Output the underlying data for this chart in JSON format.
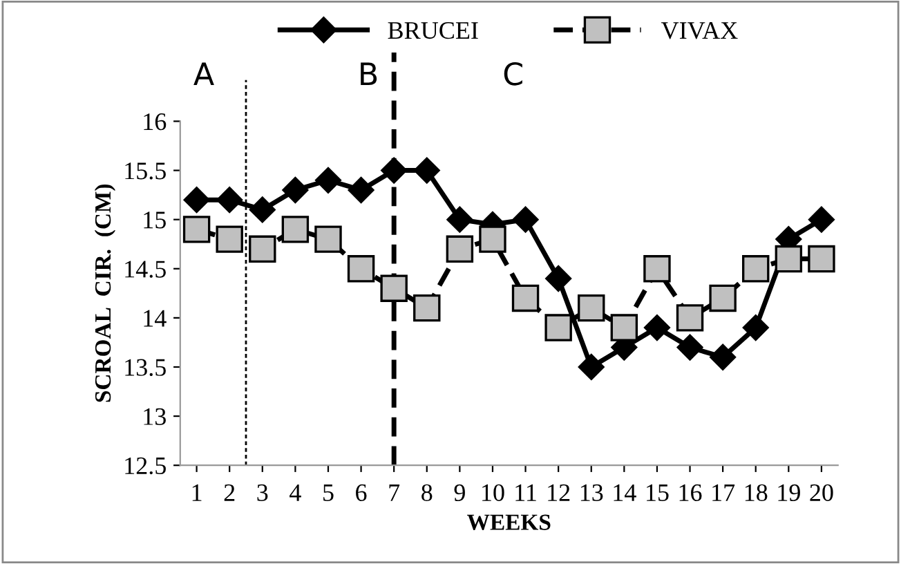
{
  "chart_data": {
    "type": "line",
    "xlabel": "WEEKS",
    "ylabel": "SCROAL  CIR.  (CM)",
    "x": [
      1,
      2,
      3,
      4,
      5,
      6,
      7,
      8,
      9,
      10,
      11,
      12,
      13,
      14,
      15,
      16,
      17,
      18,
      19,
      20
    ],
    "xlim": [
      0.5,
      20.5
    ],
    "xticks": [
      1,
      2,
      3,
      4,
      5,
      6,
      7,
      8,
      9,
      10,
      11,
      12,
      13,
      14,
      15,
      16,
      17,
      18,
      19,
      20
    ],
    "ylim": [
      12.5,
      16
    ],
    "yticks": [
      12.5,
      13,
      13.5,
      14,
      14.5,
      15,
      15.5,
      16
    ],
    "series": [
      {
        "name": "BRUCEI",
        "color": "#000000",
        "marker": "diamond",
        "line_style": "solid",
        "values": [
          15.2,
          15.2,
          15.1,
          15.3,
          15.4,
          15.3,
          15.5,
          15.5,
          15.0,
          14.95,
          15.0,
          14.4,
          13.5,
          13.7,
          13.9,
          13.7,
          13.6,
          13.9,
          14.8,
          15.0
        ]
      },
      {
        "name": "VIVAX",
        "color": "#c0c0c0",
        "marker": "square",
        "line_style": "dashed",
        "values": [
          14.9,
          14.8,
          14.7,
          14.9,
          14.8,
          14.5,
          14.3,
          14.1,
          14.7,
          14.8,
          14.2,
          13.9,
          14.1,
          13.9,
          14.5,
          14.0,
          14.2,
          14.5,
          14.6,
          14.6
        ]
      }
    ],
    "ref_lines": [
      {
        "axis": "x",
        "value": 2.5,
        "line_style": "dotted",
        "color": "#000000"
      },
      {
        "axis": "x",
        "value": 7,
        "line_style": "dashed",
        "color": "#000000"
      }
    ],
    "annotations": [
      "A",
      "B",
      "C"
    ],
    "legend": "top",
    "grid": false
  }
}
